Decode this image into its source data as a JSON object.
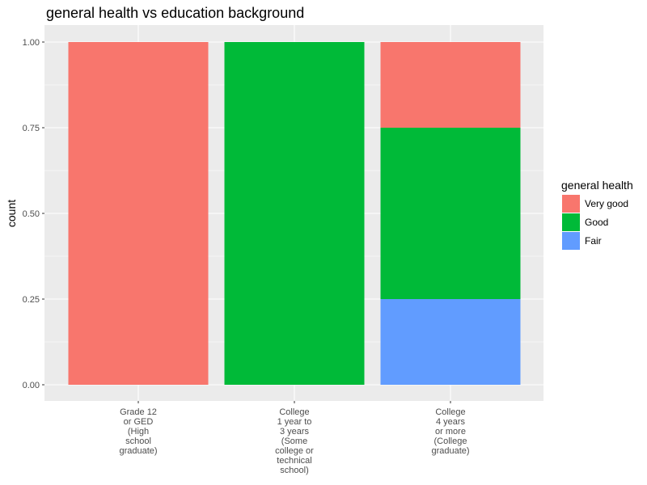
{
  "chart_data": {
    "type": "bar",
    "stacked": true,
    "position": "fill",
    "title": "general health vs education background",
    "xlabel": "",
    "ylabel": "count",
    "ylim": [
      0,
      1
    ],
    "yticks": [
      "0.00",
      "0.25",
      "0.50",
      "0.75",
      "1.00"
    ],
    "categories": [
      [
        "Grade 12",
        "or GED",
        "(High",
        "school",
        "graduate)"
      ],
      [
        "College",
        "1 year to",
        "3 years",
        "(Some",
        "college or",
        "technical",
        "school)"
      ],
      [
        "College",
        "4 years",
        "or more",
        "(College",
        "graduate)"
      ]
    ],
    "series": [
      {
        "name": "Very good",
        "color": "#F8766D",
        "values": [
          1.0,
          0.0,
          0.25
        ]
      },
      {
        "name": "Good",
        "color": "#00BA38",
        "values": [
          0.0,
          1.0,
          0.5
        ]
      },
      {
        "name": "Fair",
        "color": "#619CFF",
        "values": [
          0.0,
          0.0,
          0.25
        ]
      }
    ],
    "legend": {
      "title": "general health",
      "placement": "right"
    },
    "grid": true,
    "panel_background": "#EBEBEB",
    "grid_color": "#FFFFFF"
  }
}
